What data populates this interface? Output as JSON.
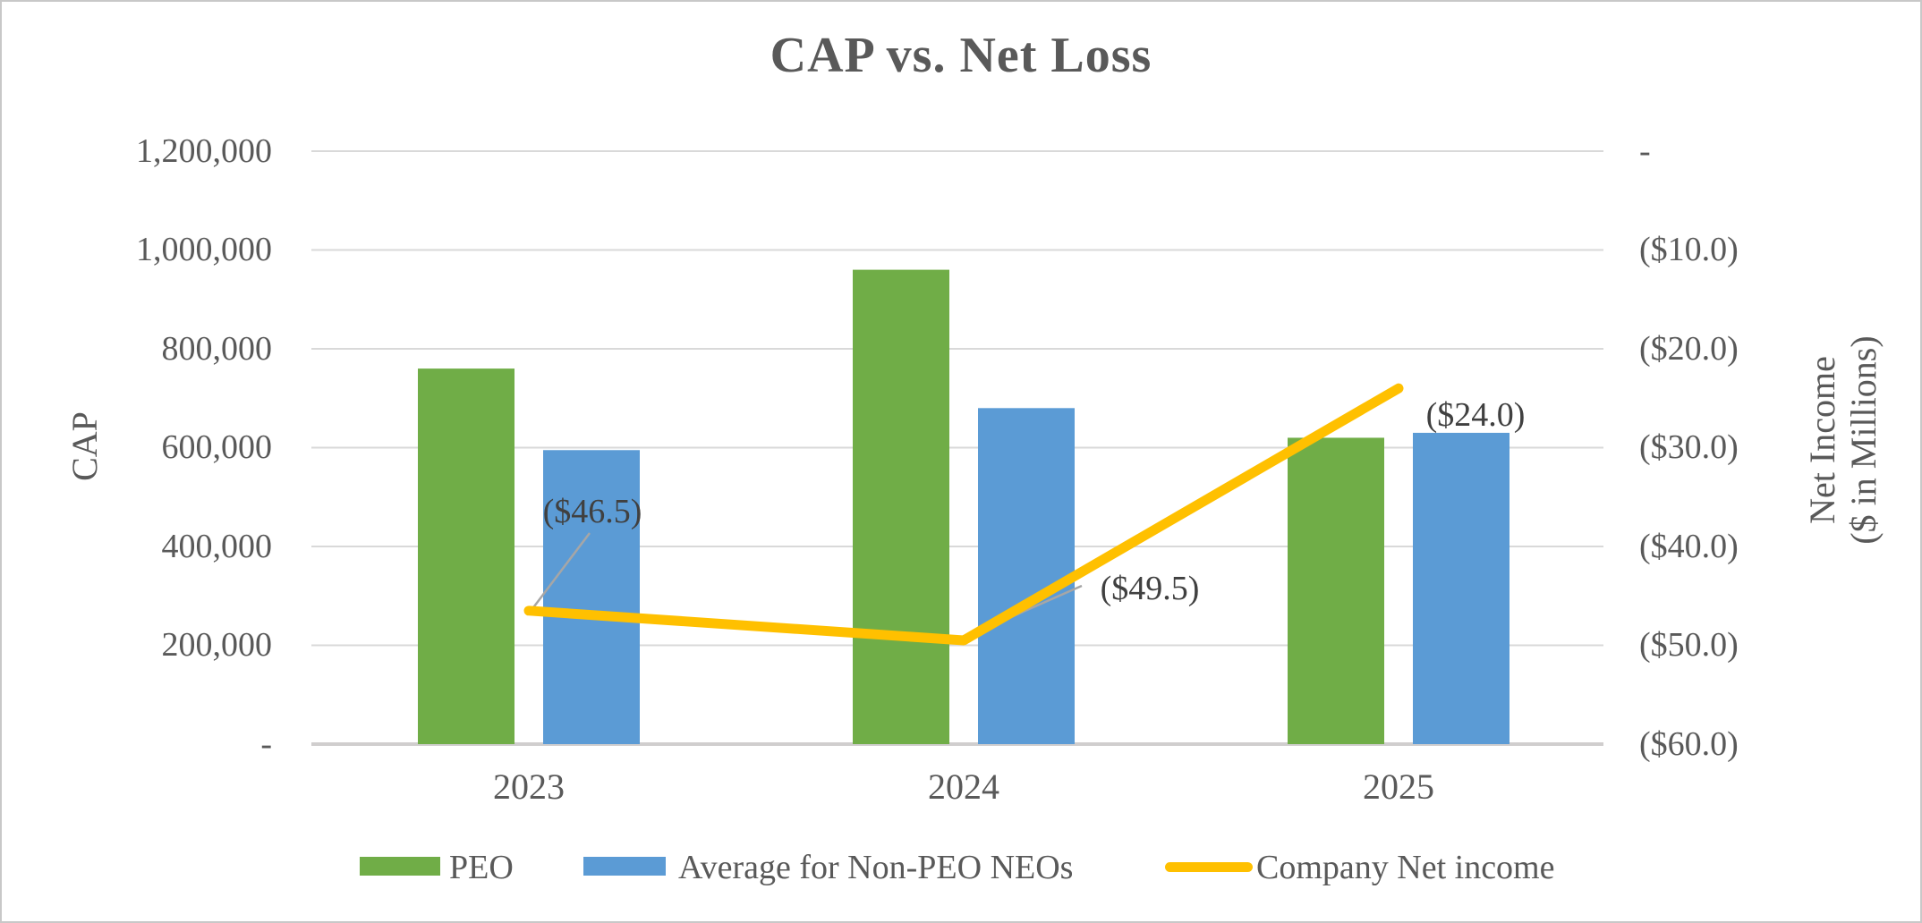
{
  "page": {
    "background": "#ffffff",
    "border_color": "#c8c8c8"
  },
  "chart_data": {
    "type": "combo",
    "title": "CAP vs. Net Loss",
    "categories": [
      "2023",
      "2024",
      "2025"
    ],
    "series": [
      {
        "name": "PEO",
        "type": "bar",
        "axis": "left",
        "color": "#70AD47",
        "values": [
          760000,
          960000,
          620000
        ]
      },
      {
        "name": "Average for Non-PEO NEOs",
        "type": "bar",
        "axis": "left",
        "color": "#5B9BD5",
        "values": [
          595000,
          680000,
          630000
        ]
      },
      {
        "name": "Company Net income",
        "type": "line",
        "axis": "right",
        "color": "#FFC000",
        "values": [
          -46.5,
          -49.5,
          -24.0
        ],
        "labels": [
          "($46.5)",
          "($49.5)",
          "($24.0)"
        ]
      }
    ],
    "left_axis": {
      "label": "CAP",
      "min": 0,
      "max": 1200000,
      "ticks": [
        "1,200,000",
        "1,000,000",
        "800,000",
        "600,000",
        "400,000",
        "200,000",
        "-"
      ]
    },
    "right_axis": {
      "label_line1": "Net Income",
      "label_line2": "($ in Millions)",
      "min": -60,
      "max": 0,
      "ticks": [
        "-",
        "($10.0)",
        "($20.0)",
        "($30.0)",
        "($40.0)",
        "($50.0)",
        "($60.0)"
      ]
    },
    "legend_position": "bottom",
    "grid": true,
    "colors": {
      "gridline": "#D9D9D9",
      "axis_line": "#D0CECE",
      "leader_line": "#A6A6A6",
      "text": "#595959",
      "data_label": "#404040"
    }
  }
}
